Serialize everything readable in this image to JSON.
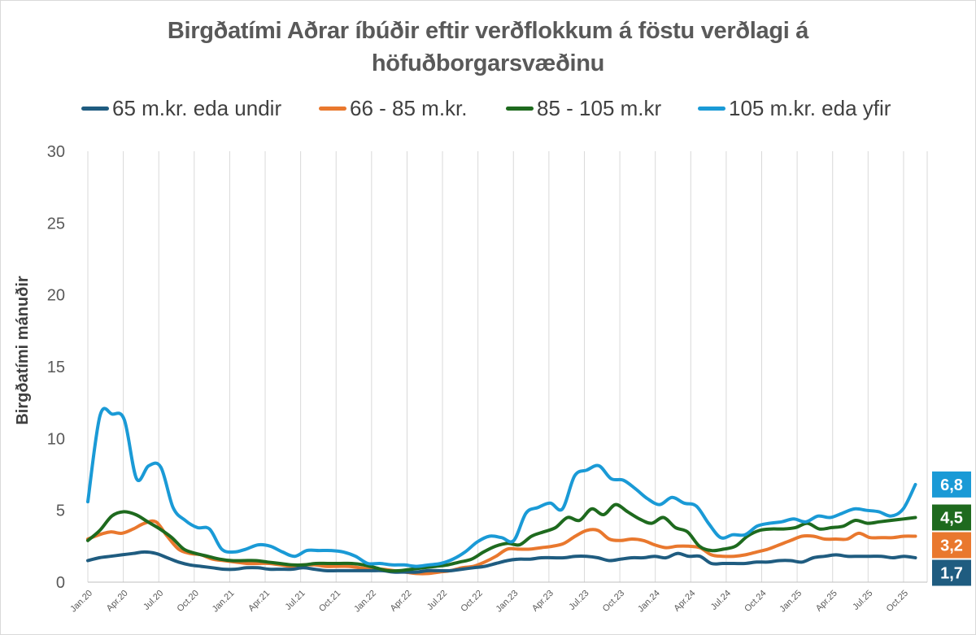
{
  "chart_data": {
    "type": "line",
    "title": "Birgðatími Aðrar íbúðir eftir verðflokkum á föstu verðlagi á höfuðborgarsvæðinu",
    "ylabel": "Birgðatími mánuðir",
    "xlabel": "",
    "ylim": [
      0,
      30
    ],
    "y_ticks": [
      "0",
      "5",
      "10",
      "15",
      "20",
      "25",
      "30"
    ],
    "grid": "vertical",
    "x_tick_labels": [
      "Jan.20",
      "Apr.20",
      "Jul.20",
      "Oct.20",
      "Jan.21",
      "Apr.21",
      "Jul.21",
      "Oct.21",
      "Jan.22",
      "Apr.22",
      "Jul.22",
      "Oct.22",
      "Jan.23",
      "Apr.23",
      "Jul.23",
      "Oct.23",
      "Jan.24",
      "Apr.24",
      "Jul.24",
      "Oct.24",
      "Jan.25",
      "Apr.25",
      "Jul.25",
      "Oct.25"
    ],
    "series": [
      {
        "name": "65 m.kr. eda undir",
        "color": "#1f5c80",
        "end_label": "1,7",
        "values": [
          1.5,
          1.7,
          1.8,
          1.9,
          2.0,
          2.1,
          2.0,
          1.7,
          1.4,
          1.2,
          1.1,
          1.0,
          0.9,
          0.9,
          1.0,
          1.0,
          0.9,
          0.9,
          0.9,
          1.0,
          0.9,
          0.8,
          0.8,
          0.8,
          0.8,
          0.8,
          0.8,
          0.7,
          0.7,
          0.7,
          0.8,
          0.8,
          0.8,
          0.9,
          1.0,
          1.1,
          1.3,
          1.5,
          1.6,
          1.6,
          1.7,
          1.7,
          1.7,
          1.8,
          1.8,
          1.7,
          1.5,
          1.6,
          1.7,
          1.7,
          1.8,
          1.7,
          2.0,
          1.8,
          1.8,
          1.3,
          1.3,
          1.3,
          1.3,
          1.4,
          1.4,
          1.5,
          1.5,
          1.4,
          1.7,
          1.8,
          1.9,
          1.8,
          1.8,
          1.8,
          1.8,
          1.7,
          1.8,
          1.7
        ]
      },
      {
        "name": "66 - 85 m.kr.",
        "color": "#e9782e",
        "end_label": "3,2",
        "values": [
          3.0,
          3.3,
          3.5,
          3.4,
          3.7,
          4.1,
          4.2,
          3.2,
          2.3,
          2.0,
          1.9,
          1.6,
          1.5,
          1.4,
          1.3,
          1.3,
          1.3,
          1.2,
          1.1,
          1.2,
          1.2,
          1.1,
          1.1,
          1.1,
          1.0,
          0.9,
          0.9,
          0.8,
          0.7,
          0.6,
          0.6,
          0.7,
          0.8,
          1.0,
          1.1,
          1.4,
          1.8,
          2.3,
          2.3,
          2.3,
          2.4,
          2.5,
          2.7,
          3.2,
          3.6,
          3.6,
          3.0,
          2.9,
          3.0,
          2.9,
          2.6,
          2.4,
          2.5,
          2.5,
          2.4,
          1.9,
          1.8,
          1.8,
          1.9,
          2.1,
          2.3,
          2.6,
          2.9,
          3.2,
          3.2,
          3.0,
          3.0,
          3.0,
          3.4,
          3.1,
          3.1,
          3.1,
          3.2,
          3.2
        ]
      },
      {
        "name": "85 - 105 m.kr",
        "color": "#1e6a1e",
        "end_label": "4,5",
        "values": [
          2.9,
          3.6,
          4.6,
          4.9,
          4.7,
          4.2,
          3.7,
          3.1,
          2.3,
          2.0,
          1.8,
          1.6,
          1.5,
          1.5,
          1.5,
          1.4,
          1.3,
          1.2,
          1.2,
          1.3,
          1.3,
          1.3,
          1.3,
          1.2,
          1.0,
          0.8,
          0.8,
          0.9,
          1.0,
          1.1,
          1.2,
          1.4,
          1.6,
          2.1,
          2.5,
          2.7,
          2.6,
          3.2,
          3.5,
          3.8,
          4.5,
          4.3,
          5.1,
          4.7,
          5.4,
          4.9,
          4.4,
          4.1,
          4.5,
          3.8,
          3.5,
          2.5,
          2.2,
          2.3,
          2.5,
          3.2,
          3.6,
          3.7,
          3.7,
          3.8,
          4.1,
          3.7,
          3.8,
          3.9,
          4.3,
          4.1,
          4.2,
          4.3,
          4.4,
          4.5
        ]
      },
      {
        "name": "105 m.kr. eda yfir",
        "color": "#1a9ad6",
        "end_label": "6,8",
        "values": [
          5.6,
          11.6,
          11.7,
          11.3,
          7.2,
          8.1,
          8.0,
          5.2,
          4.3,
          3.8,
          3.7,
          2.3,
          2.1,
          2.3,
          2.6,
          2.5,
          2.1,
          1.8,
          2.2,
          2.2,
          2.2,
          2.1,
          1.8,
          1.3,
          1.3,
          1.2,
          1.2,
          1.1,
          1.2,
          1.3,
          1.6,
          2.1,
          2.8,
          3.2,
          3.1,
          2.9,
          4.8,
          5.2,
          5.5,
          5.1,
          7.4,
          7.8,
          8.1,
          7.2,
          7.1,
          6.5,
          5.8,
          5.4,
          5.9,
          5.5,
          5.3,
          4.1,
          3.1,
          3.3,
          3.3,
          3.9,
          4.1,
          4.2,
          4.4,
          4.2,
          4.6,
          4.5,
          4.8,
          5.1,
          5.0,
          4.9,
          4.6,
          5.1,
          6.8
        ]
      }
    ]
  }
}
